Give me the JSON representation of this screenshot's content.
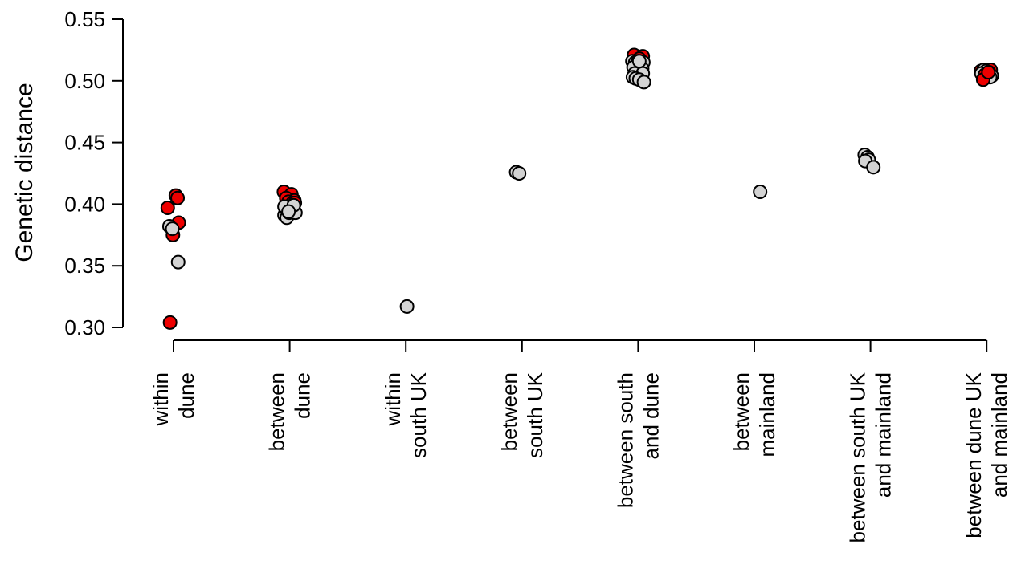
{
  "chart_data": {
    "type": "scatter",
    "title": "",
    "ylabel": "Genetic distance",
    "xlabel": "",
    "ylim": [
      0.3,
      0.55
    ],
    "yticks": [
      "0.30",
      "0.35",
      "0.40",
      "0.45",
      "0.50",
      "0.55"
    ],
    "legend": "none",
    "colors": {
      "red": "#ee0000",
      "grey": "#d3d3d3",
      "outline": "#000000"
    },
    "categories": [
      {
        "label": [
          "within",
          "dune"
        ]
      },
      {
        "label": [
          "between",
          "dune"
        ]
      },
      {
        "label": [
          "within",
          "south UK"
        ]
      },
      {
        "label": [
          "between",
          "south UK"
        ]
      },
      {
        "label": [
          "between south",
          "and dune"
        ]
      },
      {
        "label": [
          "between",
          "mainland"
        ]
      },
      {
        "label": [
          "between south UK",
          "and mainland"
        ]
      },
      {
        "label": [
          "between dune UK",
          "and mainland"
        ]
      }
    ],
    "points": [
      {
        "cat": 0,
        "y": 0.397,
        "c": "red",
        "dx": -0.1
      },
      {
        "cat": 0,
        "y": 0.407,
        "c": "red",
        "dx": 0.04
      },
      {
        "cat": 0,
        "y": 0.405,
        "c": "red",
        "dx": 0.07
      },
      {
        "cat": 0,
        "y": 0.385,
        "c": "red",
        "dx": 0.09
      },
      {
        "cat": 0,
        "y": 0.375,
        "c": "red",
        "dx": -0.01
      },
      {
        "cat": 0,
        "y": 0.304,
        "c": "red",
        "dx": -0.06
      },
      {
        "cat": 0,
        "y": 0.382,
        "c": "grey",
        "dx": -0.07
      },
      {
        "cat": 0,
        "y": 0.38,
        "c": "grey",
        "dx": -0.02
      },
      {
        "cat": 0,
        "y": 0.353,
        "c": "grey",
        "dx": 0.08
      },
      {
        "cat": 1,
        "y": 0.41,
        "c": "red",
        "dx": -0.1
      },
      {
        "cat": 1,
        "y": 0.408,
        "c": "red",
        "dx": 0.03
      },
      {
        "cat": 1,
        "y": 0.405,
        "c": "red",
        "dx": -0.06
      },
      {
        "cat": 1,
        "y": 0.403,
        "c": "red",
        "dx": 0.08
      },
      {
        "cat": 1,
        "y": 0.402,
        "c": "red",
        "dx": -0.02
      },
      {
        "cat": 1,
        "y": 0.401,
        "c": "red",
        "dx": 0.05
      },
      {
        "cat": 1,
        "y": 0.401,
        "c": "red",
        "dx": 0.09
      },
      {
        "cat": 1,
        "y": 0.391,
        "c": "grey",
        "dx": -0.09
      },
      {
        "cat": 1,
        "y": 0.389,
        "c": "grey",
        "dx": -0.05
      },
      {
        "cat": 1,
        "y": 0.393,
        "c": "grey",
        "dx": -0.01
      },
      {
        "cat": 1,
        "y": 0.396,
        "c": "grey",
        "dx": 0.04
      },
      {
        "cat": 1,
        "y": 0.393,
        "c": "grey",
        "dx": 0.1
      },
      {
        "cat": 1,
        "y": 0.398,
        "c": "grey",
        "dx": -0.09
      },
      {
        "cat": 1,
        "y": 0.399,
        "c": "grey",
        "dx": 0.07
      },
      {
        "cat": 1,
        "y": 0.394,
        "c": "grey",
        "dx": -0.02
      },
      {
        "cat": 2,
        "y": 0.317,
        "c": "grey",
        "dx": 0.02
      },
      {
        "cat": 3,
        "y": 0.426,
        "c": "grey",
        "dx": -0.1
      },
      {
        "cat": 3,
        "y": 0.425,
        "c": "grey",
        "dx": -0.05
      },
      {
        "cat": 4,
        "y": 0.521,
        "c": "red",
        "dx": -0.07
      },
      {
        "cat": 4,
        "y": 0.52,
        "c": "red",
        "dx": 0.08
      },
      {
        "cat": 4,
        "y": 0.518,
        "c": "red",
        "dx": 0.02
      },
      {
        "cat": 4,
        "y": 0.516,
        "c": "grey",
        "dx": -0.1
      },
      {
        "cat": 4,
        "y": 0.515,
        "c": "grey",
        "dx": -0.05
      },
      {
        "cat": 4,
        "y": 0.516,
        "c": "grey",
        "dx": 0.0
      },
      {
        "cat": 4,
        "y": 0.514,
        "c": "grey",
        "dx": 0.05
      },
      {
        "cat": 4,
        "y": 0.515,
        "c": "grey",
        "dx": 0.09
      },
      {
        "cat": 4,
        "y": 0.511,
        "c": "grey",
        "dx": -0.08
      },
      {
        "cat": 4,
        "y": 0.51,
        "c": "grey",
        "dx": 0.07
      },
      {
        "cat": 4,
        "y": 0.506,
        "c": "grey",
        "dx": -0.06
      },
      {
        "cat": 4,
        "y": 0.506,
        "c": "grey",
        "dx": 0.08
      },
      {
        "cat": 4,
        "y": 0.503,
        "c": "grey",
        "dx": -0.09
      },
      {
        "cat": 4,
        "y": 0.502,
        "c": "grey",
        "dx": -0.04
      },
      {
        "cat": 4,
        "y": 0.501,
        "c": "grey",
        "dx": 0.02
      },
      {
        "cat": 4,
        "y": 0.499,
        "c": "grey",
        "dx": 0.1
      },
      {
        "cat": 4,
        "y": 0.516,
        "c": "grey",
        "dx": 0.02
      },
      {
        "cat": 5,
        "y": 0.41,
        "c": "grey",
        "dx": 0.1
      },
      {
        "cat": 6,
        "y": 0.44,
        "c": "grey",
        "dx": -0.1
      },
      {
        "cat": 6,
        "y": 0.438,
        "c": "grey",
        "dx": -0.05
      },
      {
        "cat": 6,
        "y": 0.436,
        "c": "grey",
        "dx": -0.03
      },
      {
        "cat": 6,
        "y": 0.435,
        "c": "grey",
        "dx": -0.09
      },
      {
        "cat": 6,
        "y": 0.43,
        "c": "grey",
        "dx": 0.05
      },
      {
        "cat": 7,
        "y": 0.508,
        "c": "red",
        "dx": -0.1
      },
      {
        "cat": 7,
        "y": 0.509,
        "c": "red",
        "dx": 0.07
      },
      {
        "cat": 7,
        "y": 0.509,
        "c": "grey",
        "dx": -0.05
      },
      {
        "cat": 7,
        "y": 0.508,
        "c": "grey",
        "dx": -0.01
      },
      {
        "cat": 7,
        "y": 0.507,
        "c": "grey",
        "dx": 0.04
      },
      {
        "cat": 7,
        "y": 0.506,
        "c": "grey",
        "dx": -0.09
      },
      {
        "cat": 7,
        "y": 0.505,
        "c": "grey",
        "dx": 0.01
      },
      {
        "cat": 7,
        "y": 0.504,
        "c": "grey",
        "dx": 0.09
      },
      {
        "cat": 7,
        "y": 0.503,
        "c": "grey",
        "dx": 0.06
      },
      {
        "cat": 7,
        "y": 0.505,
        "c": "red",
        "dx": -0.03
      },
      {
        "cat": 7,
        "y": 0.501,
        "c": "red",
        "dx": -0.06
      },
      {
        "cat": 7,
        "y": 0.507,
        "c": "red",
        "dx": 0.03
      }
    ]
  }
}
